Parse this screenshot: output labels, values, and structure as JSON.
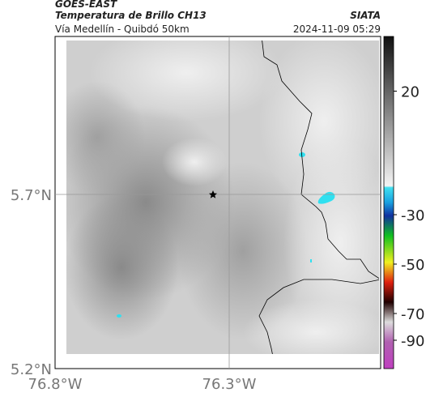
{
  "header": {
    "source": "GOES-EAST",
    "title": "Temperatura de Brillo CH13",
    "org": "SIATA",
    "subtitle": "Vía Medellín - Quibdó 50km",
    "timestamp": "2024-11-09 05:29"
  },
  "map": {
    "lat_ticks": [
      {
        "value": 5.7,
        "label": "5.7°N"
      },
      {
        "value": 5.2,
        "label": "5.2°N"
      }
    ],
    "lon_ticks": [
      {
        "value": -76.8,
        "label": "76.8°W"
      },
      {
        "value": -76.3,
        "label": "76.3°W"
      }
    ]
  },
  "colorbar": {
    "ticks": [
      20,
      -30,
      -50,
      -70,
      -90
    ]
  }
}
